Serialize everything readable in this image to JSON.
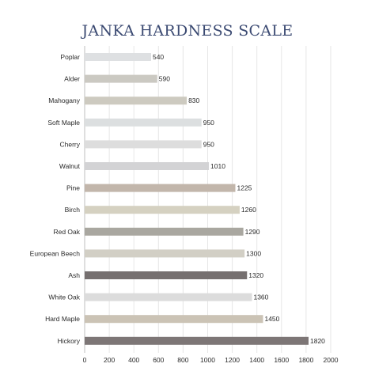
{
  "chart_data": {
    "type": "bar",
    "orientation": "horizontal",
    "title": "JANKA HARDNESS SCALE",
    "xlabel": "",
    "ylabel": "",
    "xlim": [
      0,
      2000
    ],
    "xticks": [
      0,
      200,
      400,
      600,
      800,
      1000,
      1200,
      1400,
      1600,
      1800,
      2000
    ],
    "grid": "vertical",
    "categories": [
      "Poplar",
      "Alder",
      "Mahogany",
      "Soft Maple",
      "Cherry",
      "Walnut",
      "Pine",
      "Birch",
      "Red Oak",
      "European Beech",
      "Ash",
      "White Oak",
      "Hard Maple",
      "Hickory"
    ],
    "values": [
      540,
      590,
      830,
      950,
      950,
      1010,
      1225,
      1260,
      1290,
      1300,
      1320,
      1360,
      1450,
      1820
    ],
    "bar_colors": [
      "#dee0e2",
      "#cbc9c2",
      "#cdcac0",
      "#dcdfe0",
      "#dddddd",
      "#d3d3d5",
      "#c2b6ab",
      "#d5d1c1",
      "#a9a7a0",
      "#d2cfc5",
      "#767070",
      "#dcdcdc",
      "#cbc3b5",
      "#7d7676"
    ]
  }
}
